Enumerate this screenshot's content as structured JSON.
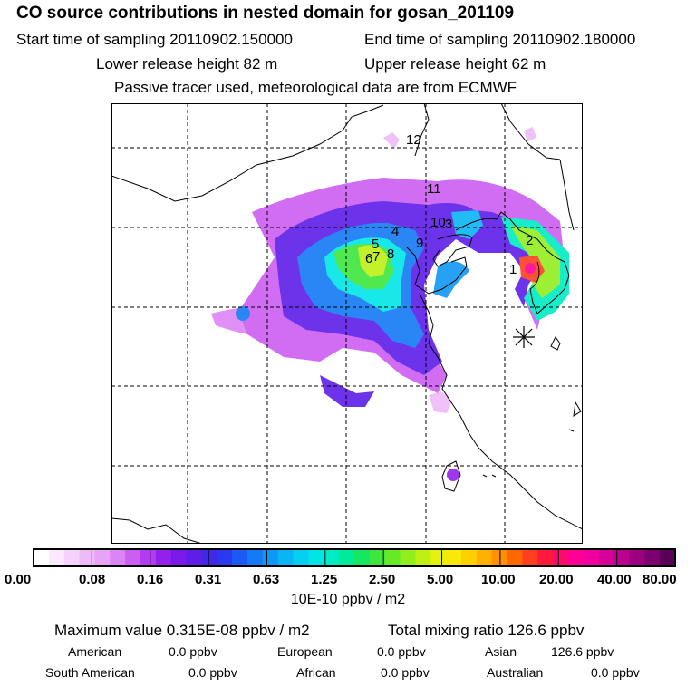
{
  "header": {
    "title": "CO  source contributions in nested domain for gosan_201109",
    "start_time": "Start time of sampling 20110902.150000",
    "end_time": "End time of sampling 20110902.180000",
    "lower_height": "Lower release height   82 m",
    "upper_height": "Upper release height   62 m",
    "tracer_note": "Passive tracer used, meteorological data are from ECMWF"
  },
  "map": {
    "region_labels": [
      "1",
      "2",
      "3",
      "4",
      "5",
      "6",
      "7",
      "8",
      "9",
      "10",
      "11",
      "12"
    ],
    "receptor_marker": "asterisk"
  },
  "colorbar": {
    "tick_labels": [
      "0.00",
      "0.08",
      "0.16",
      "0.31",
      "0.63",
      "1.25",
      "2.50",
      "5.00",
      "10.00",
      "20.00",
      "40.00",
      "80.00"
    ],
    "unit": "10E-10 ppbv / m2",
    "colors": [
      "#ffffff",
      "#fbe9fd",
      "#f5d2fb",
      "#efbaf9",
      "#e8a2f7",
      "#dd84f5",
      "#cc5ef2",
      "#b33cef",
      "#9420ec",
      "#7a1aea",
      "#5e1ee9",
      "#4028e6",
      "#2a3af0",
      "#1c5af4",
      "#1479f5",
      "#0f97f5",
      "#0ab5f5",
      "#05d0f2",
      "#00e6e6",
      "#00ecc4",
      "#00ea9a",
      "#16e660",
      "#3ce63c",
      "#66ea26",
      "#92ee1c",
      "#bef014",
      "#e6f20c",
      "#fae80a",
      "#ffd000",
      "#ffb000",
      "#ff9000",
      "#ff6800",
      "#ff4020",
      "#ff1a3c",
      "#ff0a6a",
      "#ff0096",
      "#f0009f",
      "#d8009a",
      "#bc0090",
      "#9c0080",
      "#7c0070",
      "#5a0058"
    ]
  },
  "stats": {
    "maximum": "Maximum value  0.315E-08 ppbv / m2",
    "total": "Total mixing ratio     126.6 ppbv",
    "american_label": "American",
    "american_value": "0.0 ppbv",
    "european_label": "European",
    "european_value": "0.0 ppbv",
    "asian_label": "Asian",
    "asian_value": "126.6 ppbv",
    "south_american_label": "South American",
    "south_american_value": "0.0 ppbv",
    "african_label": "African",
    "african_value": "0.0 ppbv",
    "australian_label": "Australian",
    "australian_value": "0.0 ppbv"
  }
}
